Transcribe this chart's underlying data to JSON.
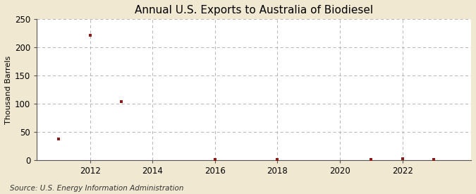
{
  "title": "Annual U.S. Exports to Australia of Biodiesel",
  "ylabel": "Thousand Barrels",
  "source": "Source: U.S. Energy Information Administration",
  "outer_bg": "#f0e8d0",
  "plot_bg": "#ffffff",
  "marker_color": "#8b1a1a",
  "grid_color": "#aaaaaa",
  "years": [
    2011,
    2012,
    2013,
    2016,
    2018,
    2021,
    2022,
    2023
  ],
  "values": [
    37,
    222,
    104,
    1,
    1,
    1,
    2,
    1
  ],
  "ylim": [
    0,
    250
  ],
  "yticks": [
    0,
    50,
    100,
    150,
    200,
    250
  ],
  "xticks": [
    2012,
    2014,
    2016,
    2018,
    2020,
    2022
  ],
  "xlim": [
    2010.3,
    2024.2
  ],
  "title_fontsize": 11,
  "label_fontsize": 8,
  "tick_fontsize": 8.5,
  "source_fontsize": 7.5
}
